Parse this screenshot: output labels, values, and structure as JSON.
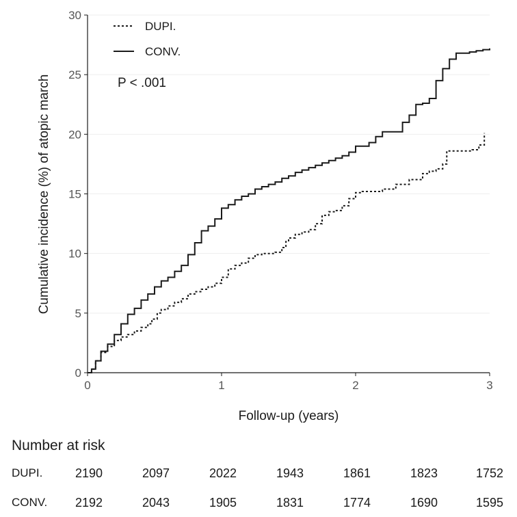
{
  "chart_data": {
    "type": "line",
    "xlabel": "Follow-up (years)",
    "ylabel": "Cumulative incidence (%) of atopic march",
    "xlim": [
      0,
      3
    ],
    "ylim": [
      0,
      30
    ],
    "xticks": [
      0,
      1,
      2,
      3
    ],
    "yticks": [
      0,
      5,
      10,
      15,
      20,
      25,
      30
    ],
    "grid": true,
    "legend": "top-left",
    "annotation": "P < .001",
    "series": [
      {
        "name": "DUPI.",
        "style": "dotted",
        "color": "#1a1a1a",
        "points": [
          [
            0,
            0
          ],
          [
            0.03,
            0.3
          ],
          [
            0.06,
            1.0
          ],
          [
            0.1,
            1.7
          ],
          [
            0.15,
            2.2
          ],
          [
            0.2,
            2.7
          ],
          [
            0.25,
            3.0
          ],
          [
            0.3,
            3.2
          ],
          [
            0.35,
            3.5
          ],
          [
            0.4,
            3.8
          ],
          [
            0.45,
            4.1
          ],
          [
            0.48,
            4.5
          ],
          [
            0.52,
            5.0
          ],
          [
            0.55,
            5.3
          ],
          [
            0.6,
            5.6
          ],
          [
            0.65,
            5.9
          ],
          [
            0.7,
            6.2
          ],
          [
            0.75,
            6.6
          ],
          [
            0.8,
            6.8
          ],
          [
            0.85,
            7.0
          ],
          [
            0.9,
            7.2
          ],
          [
            0.95,
            7.5
          ],
          [
            1.0,
            8.0
          ],
          [
            1.05,
            8.7
          ],
          [
            1.1,
            9.0
          ],
          [
            1.15,
            9.2
          ],
          [
            1.2,
            9.6
          ],
          [
            1.25,
            9.9
          ],
          [
            1.3,
            10.0
          ],
          [
            1.35,
            10.0
          ],
          [
            1.4,
            10.1
          ],
          [
            1.45,
            10.5
          ],
          [
            1.48,
            11.0
          ],
          [
            1.5,
            11.3
          ],
          [
            1.55,
            11.6
          ],
          [
            1.6,
            11.8
          ],
          [
            1.65,
            12.0
          ],
          [
            1.7,
            12.5
          ],
          [
            1.75,
            13.2
          ],
          [
            1.8,
            13.5
          ],
          [
            1.85,
            13.6
          ],
          [
            1.9,
            14.0
          ],
          [
            1.95,
            14.6
          ],
          [
            2.0,
            15.1
          ],
          [
            2.05,
            15.2
          ],
          [
            2.1,
            15.2
          ],
          [
            2.2,
            15.4
          ],
          [
            2.3,
            15.8
          ],
          [
            2.4,
            16.2
          ],
          [
            2.5,
            16.7
          ],
          [
            2.55,
            16.9
          ],
          [
            2.6,
            17.1
          ],
          [
            2.65,
            17.5
          ],
          [
            2.68,
            18.6
          ],
          [
            2.75,
            18.6
          ],
          [
            2.8,
            18.6
          ],
          [
            2.87,
            18.7
          ],
          [
            2.92,
            19.1
          ],
          [
            2.96,
            20.1
          ]
        ]
      },
      {
        "name": "CONV.",
        "style": "solid",
        "color": "#1a1a1a",
        "points": [
          [
            0,
            0
          ],
          [
            0.03,
            0.3
          ],
          [
            0.06,
            1.0
          ],
          [
            0.1,
            1.8
          ],
          [
            0.15,
            2.4
          ],
          [
            0.2,
            3.2
          ],
          [
            0.25,
            4.1
          ],
          [
            0.3,
            4.9
          ],
          [
            0.35,
            5.4
          ],
          [
            0.4,
            6.1
          ],
          [
            0.45,
            6.6
          ],
          [
            0.5,
            7.2
          ],
          [
            0.55,
            7.7
          ],
          [
            0.6,
            8.0
          ],
          [
            0.65,
            8.5
          ],
          [
            0.7,
            9.0
          ],
          [
            0.75,
            9.9
          ],
          [
            0.8,
            10.9
          ],
          [
            0.85,
            11.9
          ],
          [
            0.9,
            12.3
          ],
          [
            0.95,
            12.9
          ],
          [
            1.0,
            13.8
          ],
          [
            1.05,
            14.1
          ],
          [
            1.1,
            14.5
          ],
          [
            1.15,
            14.8
          ],
          [
            1.2,
            15.0
          ],
          [
            1.25,
            15.4
          ],
          [
            1.3,
            15.6
          ],
          [
            1.35,
            15.8
          ],
          [
            1.4,
            16.0
          ],
          [
            1.45,
            16.3
          ],
          [
            1.5,
            16.5
          ],
          [
            1.55,
            16.8
          ],
          [
            1.6,
            17.0
          ],
          [
            1.65,
            17.2
          ],
          [
            1.7,
            17.4
          ],
          [
            1.75,
            17.6
          ],
          [
            1.8,
            17.8
          ],
          [
            1.85,
            18.0
          ],
          [
            1.9,
            18.2
          ],
          [
            1.95,
            18.5
          ],
          [
            2.0,
            19.0
          ],
          [
            2.1,
            19.3
          ],
          [
            2.15,
            19.8
          ],
          [
            2.2,
            20.2
          ],
          [
            2.3,
            20.2
          ],
          [
            2.35,
            21.0
          ],
          [
            2.4,
            21.6
          ],
          [
            2.45,
            22.5
          ],
          [
            2.5,
            22.6
          ],
          [
            2.55,
            23.0
          ],
          [
            2.6,
            24.5
          ],
          [
            2.65,
            25.5
          ],
          [
            2.7,
            26.3
          ],
          [
            2.75,
            26.8
          ],
          [
            2.85,
            26.9
          ],
          [
            2.9,
            27.0
          ],
          [
            2.95,
            27.1
          ],
          [
            3.0,
            27.2
          ]
        ]
      }
    ]
  },
  "risk_table": {
    "title": "Number at risk",
    "rows": [
      {
        "name": "DUPI.",
        "values": [
          "2190",
          "2097",
          "2022",
          "1943",
          "1861",
          "1823",
          "1752"
        ]
      },
      {
        "name": "CONV.",
        "values": [
          "2192",
          "2043",
          "1905",
          "1831",
          "1774",
          "1690",
          "1595"
        ]
      }
    ]
  }
}
